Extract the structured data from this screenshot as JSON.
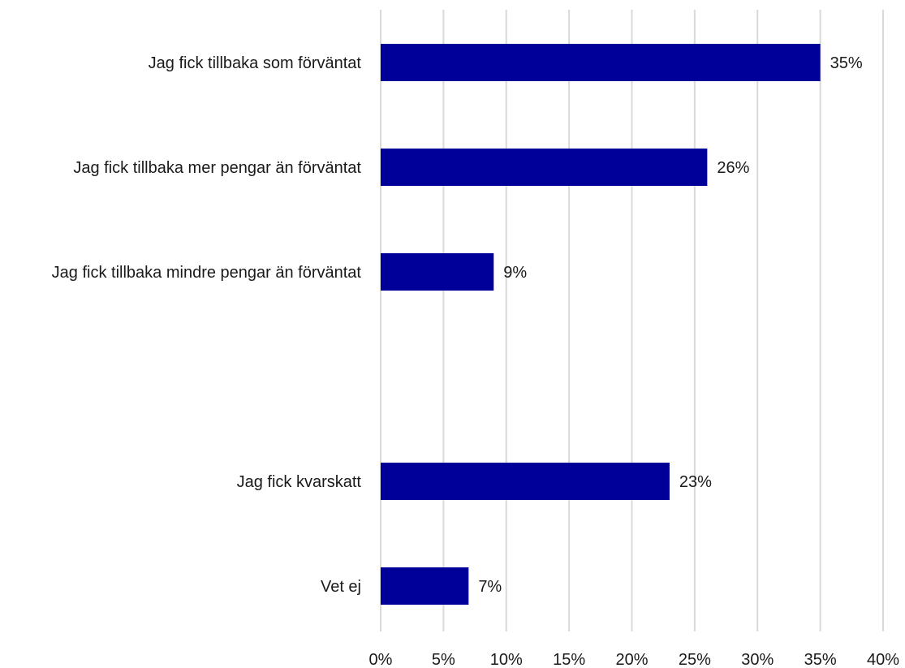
{
  "chart_data": {
    "type": "bar",
    "orientation": "horizontal",
    "categories": [
      "Jag fick tillbaka som förväntat",
      "Jag fick tillbaka mer pengar än förväntat",
      "Jag fick tillbaka mindre pengar än förväntat",
      "",
      "Jag fick kvarskatt",
      "Vet ej"
    ],
    "values": [
      35,
      26,
      9,
      null,
      23,
      7
    ],
    "value_labels": [
      "35%",
      "26%",
      "9%",
      "",
      "23%",
      "7%"
    ],
    "xlim": [
      0,
      40
    ],
    "x_ticks": [
      0,
      5,
      10,
      15,
      20,
      25,
      30,
      35,
      40
    ],
    "x_tick_labels": [
      "0%",
      "5%",
      "10%",
      "15%",
      "20%",
      "25%",
      "30%",
      "35%",
      "40%"
    ],
    "title": "",
    "xlabel": "",
    "ylabel": "",
    "grid": "vertical",
    "legend": "none",
    "bar_color": "#000099"
  }
}
